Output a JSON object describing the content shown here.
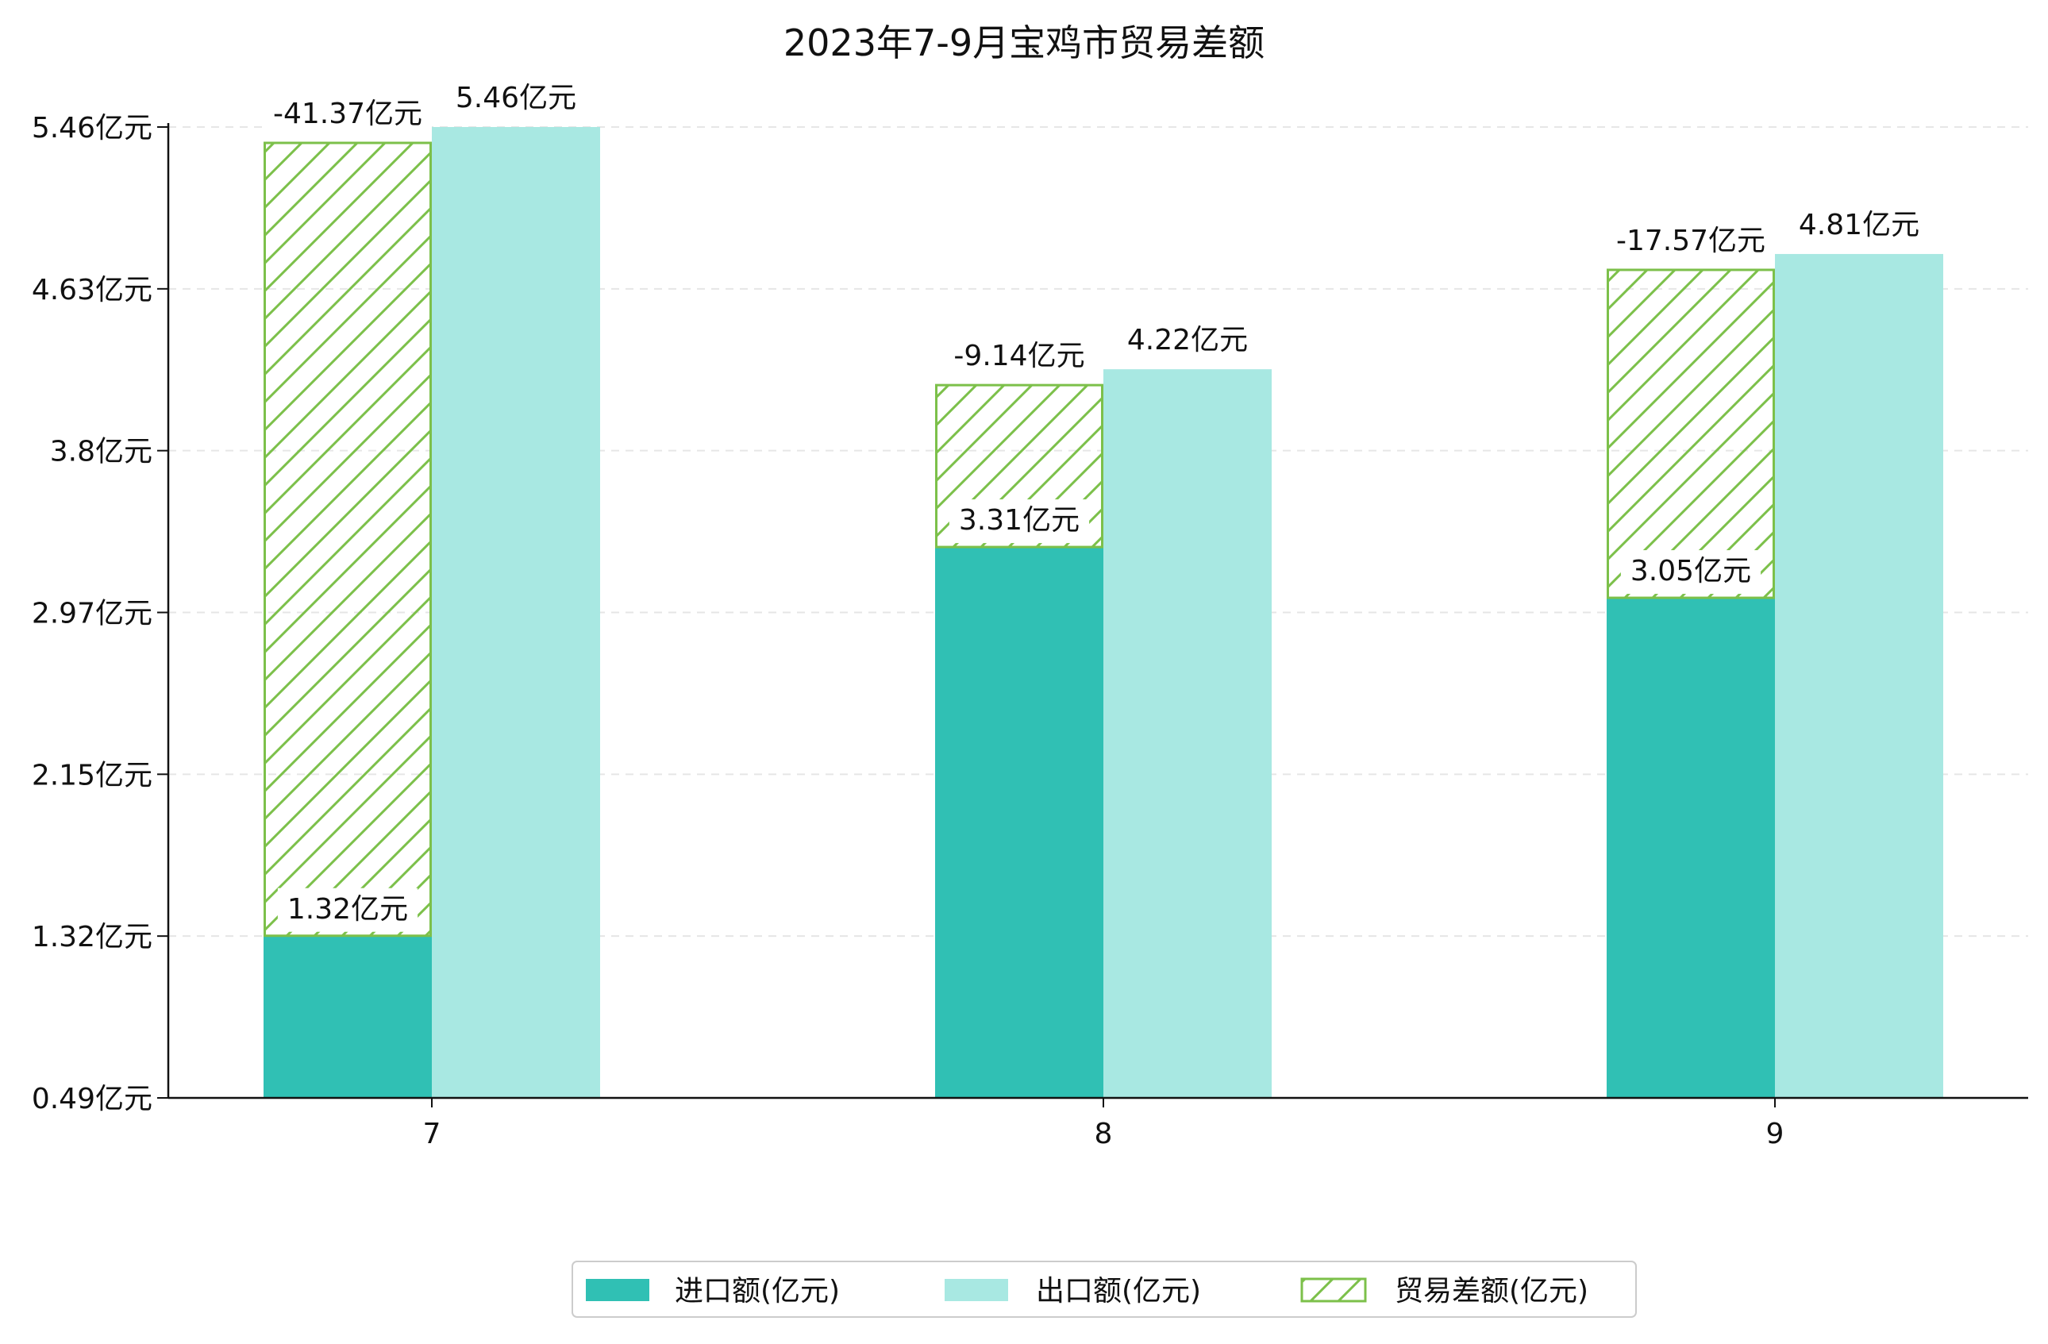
{
  "chart_data": {
    "type": "bar",
    "title": "2023年7-9月宝鸡市贸易差额",
    "xlabel": "",
    "ylabel": "",
    "categories": [
      "7",
      "8",
      "9"
    ],
    "y_ticks": [
      "0.49亿元",
      "1.32亿元",
      "2.15亿元",
      "2.97亿元",
      "3.8亿元",
      "4.63亿元",
      "5.46亿元"
    ],
    "ylim": [
      0.49,
      5.46
    ],
    "grid": true,
    "legend_position": "bottom-center",
    "series": [
      {
        "name": "进口额(亿元)",
        "values": [
          1.32,
          3.31,
          3.05
        ],
        "labels": [
          "1.32亿元",
          "3.31亿元",
          "3.05亿元"
        ],
        "color": "#30c0b4"
      },
      {
        "name": "出口额(亿元)",
        "values": [
          5.46,
          4.22,
          4.81
        ],
        "labels": [
          "5.46亿元",
          "4.22亿元",
          "4.81亿元"
        ],
        "color": "#a8e8e2"
      },
      {
        "name": "贸易差额(亿元)",
        "values": [
          -41.37,
          -9.14,
          -17.57
        ],
        "labels": [
          "-41.37亿元",
          "-9.14亿元",
          "-17.57亿元"
        ],
        "color": "#7cc04a",
        "pattern": "hatch"
      }
    ]
  }
}
